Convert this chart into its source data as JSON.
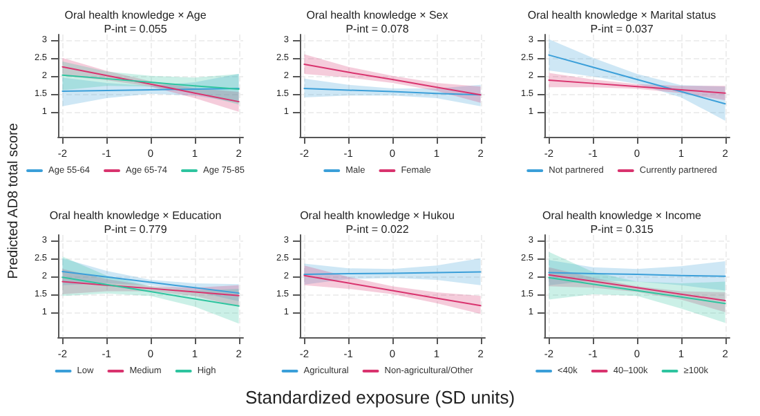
{
  "chart_data": [
    {
      "type": "line",
      "title": "Oral health knowledge × Age",
      "subtitle": "P-int = 0.055",
      "ylabel": "Predicted AD8 total score",
      "x": [
        -2,
        -1,
        0,
        1,
        2
      ],
      "xlim": [
        -2.1,
        2.1
      ],
      "ylim": [
        0.3,
        3.15
      ],
      "xticks": [
        -2,
        -1,
        0,
        1,
        2
      ],
      "yticks": [
        1,
        1.5,
        2,
        2.5,
        3
      ],
      "grid": true,
      "legend": "bottom",
      "series": [
        {
          "name": "Age 55-64",
          "color": "#3b9fd9",
          "values": [
            1.57,
            1.59,
            1.61,
            1.63,
            1.65
          ],
          "lower": [
            1.15,
            1.38,
            1.5,
            1.45,
            1.25
          ],
          "upper": [
            1.95,
            1.8,
            1.72,
            1.82,
            2.05
          ]
        },
        {
          "name": "Age 65-74",
          "color": "#d9336e",
          "values": [
            2.25,
            2.01,
            1.77,
            1.52,
            1.28
          ],
          "lower": [
            2.0,
            1.88,
            1.7,
            1.38,
            1.0
          ],
          "upper": [
            2.5,
            2.14,
            1.85,
            1.66,
            1.55
          ]
        },
        {
          "name": "Age 75-85",
          "color": "#2ec49f",
          "values": [
            2.02,
            1.92,
            1.82,
            1.72,
            1.63
          ],
          "lower": [
            1.6,
            1.72,
            1.7,
            1.52,
            1.2
          ],
          "upper": [
            2.4,
            2.12,
            2.0,
            1.95,
            2.05
          ]
        }
      ]
    },
    {
      "type": "line",
      "title": "Oral health knowledge × Sex",
      "subtitle": "P-int = 0.078",
      "x": [
        -2,
        -1,
        0,
        1,
        2
      ],
      "xlim": [
        -2.1,
        2.1
      ],
      "ylim": [
        0.3,
        3.15
      ],
      "xticks": [
        -2,
        -1,
        0,
        1,
        2
      ],
      "yticks": [
        1,
        1.5,
        2,
        2.5,
        3
      ],
      "grid": true,
      "legend": "bottom",
      "series": [
        {
          "name": "Male",
          "color": "#3b9fd9",
          "values": [
            1.65,
            1.6,
            1.56,
            1.51,
            1.47
          ],
          "lower": [
            1.4,
            1.45,
            1.45,
            1.38,
            1.15
          ],
          "upper": [
            1.92,
            1.75,
            1.65,
            1.65,
            1.75
          ]
        },
        {
          "name": "Female",
          "color": "#d9336e",
          "values": [
            2.32,
            2.1,
            1.9,
            1.68,
            1.47
          ],
          "lower": [
            2.05,
            1.95,
            1.8,
            1.58,
            1.25
          ],
          "upper": [
            2.6,
            2.25,
            2.0,
            1.8,
            1.7
          ]
        }
      ]
    },
    {
      "type": "line",
      "title": "Oral health knowledge × Marital status",
      "subtitle": "P-int = 0.037",
      "x": [
        -2,
        -1,
        0,
        1,
        2
      ],
      "xlim": [
        -2.1,
        2.1
      ],
      "ylim": [
        0.3,
        3.15
      ],
      "xticks": [
        -2,
        -1,
        0,
        1,
        2
      ],
      "yticks": [
        1,
        1.5,
        2,
        2.5,
        3
      ],
      "grid": true,
      "legend": "bottom",
      "series": [
        {
          "name": "Not partnered",
          "color": "#3b9fd9",
          "values": [
            2.58,
            2.24,
            1.9,
            1.56,
            1.22
          ],
          "lower": [
            2.15,
            1.98,
            1.78,
            1.4,
            0.75
          ],
          "upper": [
            3.02,
            2.5,
            2.05,
            1.74,
            1.7
          ]
        },
        {
          "name": "Currently partnered",
          "color": "#d9336e",
          "values": [
            1.88,
            1.79,
            1.7,
            1.61,
            1.52
          ],
          "lower": [
            1.68,
            1.68,
            1.64,
            1.52,
            1.32
          ],
          "upper": [
            2.08,
            1.9,
            1.77,
            1.72,
            1.72
          ]
        }
      ]
    },
    {
      "type": "line",
      "title": "Oral health knowledge × Education",
      "subtitle": "P-int = 0.779",
      "x": [
        -2,
        -1,
        0,
        1,
        2
      ],
      "xlim": [
        -2.1,
        2.1
      ],
      "ylim": [
        0.3,
        3.15
      ],
      "xticks": [
        -2,
        -1,
        0,
        1,
        2
      ],
      "yticks": [
        1,
        1.5,
        2,
        2.5,
        3
      ],
      "grid": true,
      "legend": "bottom",
      "series": [
        {
          "name": "Low",
          "color": "#3b9fd9",
          "values": [
            2.13,
            1.98,
            1.83,
            1.68,
            1.53
          ],
          "lower": [
            1.75,
            1.8,
            1.75,
            1.58,
            1.3
          ],
          "upper": [
            2.5,
            2.15,
            1.9,
            1.8,
            1.78
          ]
        },
        {
          "name": "Medium",
          "color": "#d9336e",
          "values": [
            1.85,
            1.75,
            1.66,
            1.56,
            1.46
          ],
          "lower": [
            1.5,
            1.58,
            1.58,
            1.45,
            1.15
          ],
          "upper": [
            2.2,
            1.92,
            1.72,
            1.68,
            1.75
          ]
        },
        {
          "name": "High",
          "color": "#2ec49f",
          "values": [
            1.97,
            1.77,
            1.57,
            1.37,
            1.17
          ],
          "lower": [
            1.45,
            1.52,
            1.45,
            1.15,
            0.68
          ],
          "upper": [
            2.55,
            2.02,
            1.72,
            1.6,
            1.65
          ]
        }
      ]
    },
    {
      "type": "line",
      "title": "Oral health knowledge × Hukou",
      "subtitle": "P-int = 0.022",
      "xlabel": "Standardized exposure (SD units)",
      "x": [
        -2,
        -1,
        0,
        1,
        2
      ],
      "xlim": [
        -2.1,
        2.1
      ],
      "ylim": [
        0.3,
        3.15
      ],
      "xticks": [
        -2,
        -1,
        0,
        1,
        2
      ],
      "yticks": [
        1,
        1.5,
        2,
        2.5,
        3
      ],
      "grid": true,
      "legend": "bottom",
      "series": [
        {
          "name": "Agricultural",
          "color": "#3b9fd9",
          "values": [
            2.05,
            2.07,
            2.08,
            2.1,
            2.12
          ],
          "lower": [
            1.77,
            1.92,
            1.95,
            1.9,
            1.75
          ],
          "upper": [
            2.35,
            2.22,
            2.2,
            2.3,
            2.5
          ]
        },
        {
          "name": "Non-agricultural/Other",
          "color": "#d9336e",
          "values": [
            2.02,
            1.81,
            1.6,
            1.39,
            1.18
          ],
          "lower": [
            1.75,
            1.65,
            1.5,
            1.25,
            0.95
          ],
          "upper": [
            2.3,
            1.98,
            1.72,
            1.55,
            1.45
          ]
        }
      ]
    },
    {
      "type": "line",
      "title": "Oral health knowledge × Income",
      "subtitle": "P-int = 0.315",
      "x": [
        -2,
        -1,
        0,
        1,
        2
      ],
      "xlim": [
        -2.1,
        2.1
      ],
      "ylim": [
        0.3,
        3.15
      ],
      "xticks": [
        -2,
        -1,
        0,
        1,
        2
      ],
      "yticks": [
        1,
        1.5,
        2,
        2.5,
        3
      ],
      "grid": true,
      "legend": "bottom",
      "series": [
        {
          "name": "<40k",
          "color": "#3b9fd9",
          "values": [
            2.1,
            2.07,
            2.05,
            2.02,
            2.0
          ],
          "lower": [
            1.75,
            1.88,
            1.85,
            1.75,
            1.6
          ],
          "upper": [
            2.45,
            2.25,
            2.2,
            2.28,
            2.42
          ]
        },
        {
          "name": "40–100k",
          "color": "#d9336e",
          "values": [
            2.04,
            1.86,
            1.68,
            1.5,
            1.32
          ],
          "lower": [
            1.72,
            1.68,
            1.56,
            1.35,
            1.0
          ],
          "upper": [
            2.25,
            1.96,
            1.72,
            1.58,
            1.55
          ]
        },
        {
          "name": "≥100k",
          "color": "#2ec49f",
          "values": [
            1.96,
            1.78,
            1.6,
            1.42,
            1.24
          ],
          "lower": [
            1.35,
            1.5,
            1.45,
            1.1,
            0.7
          ],
          "upper": [
            2.68,
            2.12,
            1.85,
            1.8,
            1.85
          ]
        }
      ]
    }
  ]
}
